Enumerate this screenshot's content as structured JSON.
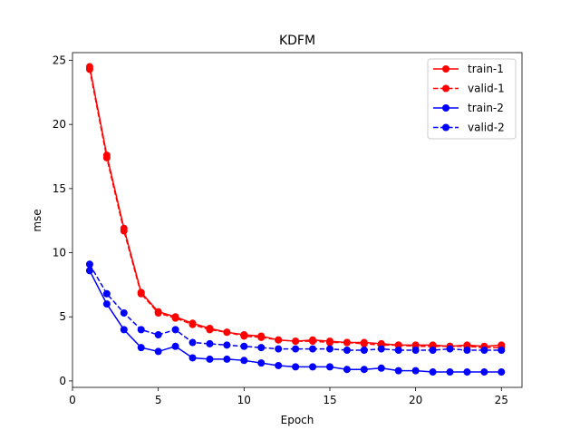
{
  "chart_data": {
    "type": "line",
    "title": "KDFM",
    "xlabel": "Epoch",
    "ylabel": "mse",
    "xlim": [
      0,
      26.2
    ],
    "ylim": [
      -0.5,
      25.6
    ],
    "xticks": [
      0,
      5,
      10,
      15,
      20,
      25
    ],
    "yticks": [
      0,
      5,
      10,
      15,
      20,
      25
    ],
    "grid": false,
    "legend_position": "top-right",
    "x": [
      1,
      2,
      3,
      4,
      5,
      6,
      7,
      8,
      9,
      10,
      11,
      12,
      13,
      14,
      15,
      16,
      17,
      18,
      19,
      20,
      21,
      22,
      23,
      24,
      25
    ],
    "series": [
      {
        "name": "train-1",
        "color": "#ff0000",
        "dashed": false,
        "values": [
          24.5,
          17.6,
          11.9,
          6.9,
          5.4,
          5.0,
          4.5,
          4.1,
          3.8,
          3.6,
          3.5,
          3.2,
          3.1,
          3.2,
          3.1,
          3.0,
          3.0,
          2.9,
          2.8,
          2.8,
          2.8,
          2.7,
          2.8,
          2.7,
          2.8
        ]
      },
      {
        "name": "valid-1",
        "color": "#ff0000",
        "dashed": true,
        "values": [
          24.3,
          17.4,
          11.7,
          6.8,
          5.3,
          4.9,
          4.4,
          4.0,
          3.8,
          3.5,
          3.4,
          3.2,
          3.1,
          3.1,
          3.0,
          3.0,
          2.9,
          2.8,
          2.8,
          2.7,
          2.7,
          2.7,
          2.7,
          2.6,
          2.6
        ]
      },
      {
        "name": "train-2",
        "color": "#0000ff",
        "dashed": false,
        "values": [
          8.6,
          6.0,
          4.0,
          2.6,
          2.3,
          2.7,
          1.8,
          1.7,
          1.7,
          1.6,
          1.4,
          1.2,
          1.1,
          1.1,
          1.1,
          0.9,
          0.9,
          1.0,
          0.8,
          0.8,
          0.7,
          0.7,
          0.7,
          0.7,
          0.7
        ]
      },
      {
        "name": "valid-2",
        "color": "#0000ff",
        "dashed": true,
        "values": [
          9.1,
          6.8,
          5.3,
          4.0,
          3.6,
          4.0,
          3.0,
          2.9,
          2.8,
          2.7,
          2.6,
          2.5,
          2.5,
          2.5,
          2.5,
          2.4,
          2.4,
          2.5,
          2.4,
          2.4,
          2.4,
          2.5,
          2.4,
          2.4,
          2.4
        ]
      }
    ]
  }
}
